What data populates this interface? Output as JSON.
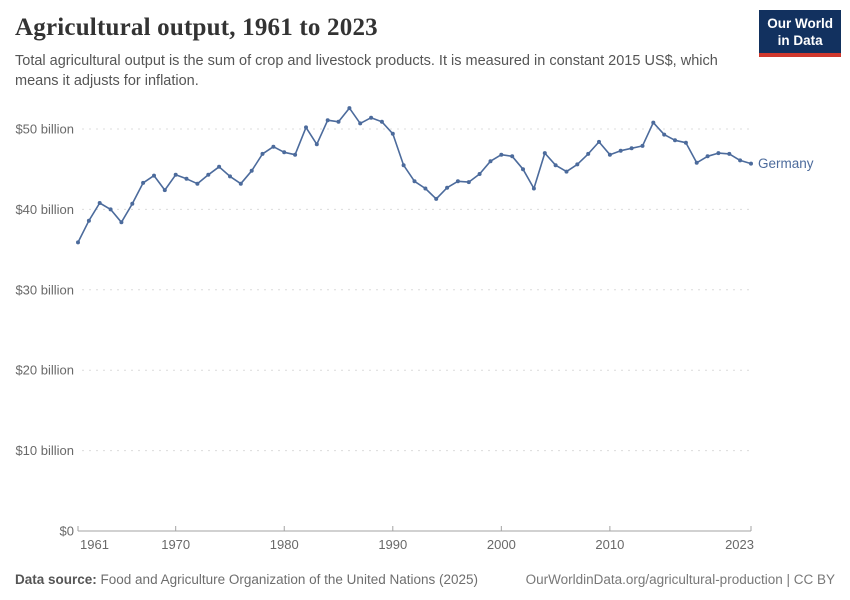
{
  "header": {
    "title": "Agricultural output, 1961 to 2023",
    "subtitle": "Total agricultural output is the sum of crop and livestock products. It is measured in constant 2015 US$, which means it adjusts for inflation.",
    "logo": {
      "line1": "Our World",
      "line2": "in Data"
    }
  },
  "chart_data": {
    "type": "line",
    "title": "Agricultural output, 1961 to 2023",
    "unit": "constant 2015 US$ (billions)",
    "grid": "horizontal dashed",
    "legend_position": "end-of-line label",
    "line_color": "#4C6B9C",
    "x": [
      1961,
      1962,
      1963,
      1964,
      1965,
      1966,
      1967,
      1968,
      1969,
      1970,
      1971,
      1972,
      1973,
      1974,
      1975,
      1976,
      1977,
      1978,
      1979,
      1980,
      1981,
      1982,
      1983,
      1984,
      1985,
      1986,
      1987,
      1988,
      1989,
      1990,
      1991,
      1992,
      1993,
      1994,
      1995,
      1996,
      1997,
      1998,
      1999,
      2000,
      2001,
      2002,
      2003,
      2004,
      2005,
      2006,
      2007,
      2008,
      2009,
      2010,
      2011,
      2012,
      2013,
      2014,
      2015,
      2016,
      2017,
      2018,
      2019,
      2020,
      2021,
      2022,
      2023
    ],
    "series": [
      {
        "name": "Germany",
        "values": [
          35.9,
          38.6,
          40.8,
          40.0,
          38.4,
          40.7,
          43.3,
          44.2,
          42.4,
          44.3,
          43.8,
          43.2,
          44.3,
          45.3,
          44.1,
          43.2,
          44.8,
          46.9,
          47.8,
          47.1,
          46.8,
          50.2,
          48.1,
          51.1,
          50.9,
          52.6,
          50.7,
          51.4,
          50.9,
          49.4,
          45.5,
          43.5,
          42.6,
          41.3,
          42.7,
          43.5,
          43.4,
          44.4,
          46.0,
          46.8,
          46.6,
          45.0,
          42.6,
          47.0,
          45.5,
          44.7,
          45.6,
          46.9,
          48.4,
          46.8,
          47.3,
          47.6,
          47.9,
          50.8,
          49.3,
          48.6,
          48.3,
          45.8,
          46.6,
          47.0,
          46.9,
          46.1,
          45.7
        ]
      }
    ],
    "xlim": [
      1961,
      2023
    ],
    "ylim": [
      0,
      55
    ],
    "ytick_values": [
      0,
      10,
      20,
      30,
      40,
      50
    ],
    "ytick_labels": [
      "$0",
      "$10 billion",
      "$20 billion",
      "$30 billion",
      "$40 billion",
      "$50 billion"
    ],
    "xtick_years": [
      1961,
      1970,
      1980,
      1990,
      2000,
      2010,
      2023
    ],
    "entity_label": "Germany"
  },
  "footer": {
    "source_label": "Data source:",
    "source_text": " Food and Agriculture Organization of the United Nations (2025)",
    "right_text": "OurWorldinData.org/agricultural-production | CC BY"
  },
  "colors": {
    "line": "#4C6B9C",
    "gridline": "#dcdcdc",
    "axis": "#a3a3a3",
    "tick_label": "#696969",
    "logo_bg": "#12315F",
    "logo_accent": "#D0382D"
  }
}
